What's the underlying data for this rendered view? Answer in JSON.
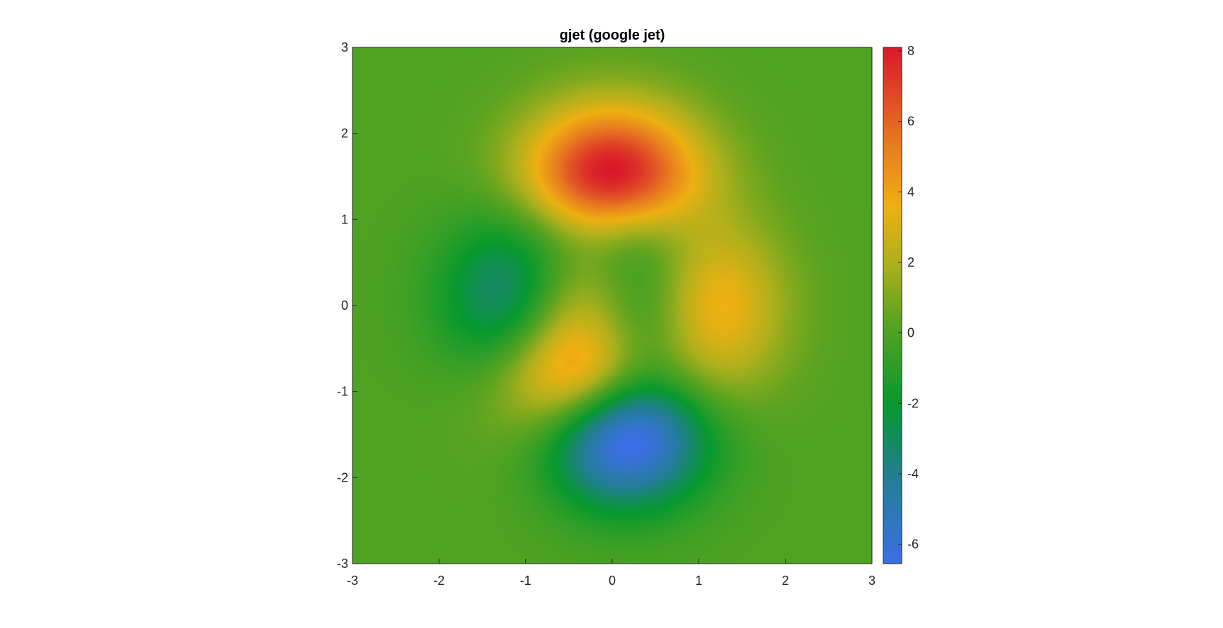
{
  "chart_data": {
    "type": "heatmap",
    "title": "gjet (google jet)",
    "xlabel": "",
    "ylabel": "",
    "xlim": [
      -3,
      3
    ],
    "ylim": [
      -3,
      3
    ],
    "x_ticks": [
      -3,
      -2,
      -1,
      0,
      1,
      2,
      3
    ],
    "y_ticks": [
      -3,
      -2,
      -1,
      0,
      1,
      2,
      3
    ],
    "x_tick_labels": [
      "-3",
      "-2",
      "-1",
      "0",
      "1",
      "2",
      "3"
    ],
    "y_tick_labels": [
      "-3",
      "-2",
      "-1",
      "0",
      "1",
      "2",
      "3"
    ],
    "colorbar": {
      "limits": [
        -6.55,
        8.1
      ],
      "ticks": [
        -6,
        -4,
        -2,
        0,
        2,
        4,
        6,
        8
      ],
      "tick_labels": [
        "-6",
        "-4",
        "-2",
        "0",
        "2",
        "4",
        "6",
        "8"
      ]
    },
    "colormap_name": "gjet",
    "colormap_stops": [
      {
        "value": -6.55,
        "color": "#3b6fe6"
      },
      {
        "value": -4.0,
        "color": "#217f8f"
      },
      {
        "value": -2.0,
        "color": "#07992e"
      },
      {
        "value": 0.3,
        "color": "#5aa320"
      },
      {
        "value": 2.0,
        "color": "#b0b01c"
      },
      {
        "value": 3.6,
        "color": "#eeb012"
      },
      {
        "value": 5.3,
        "color": "#e87c20"
      },
      {
        "value": 8.1,
        "color": "#d9192a"
      }
    ],
    "function": "peaks",
    "grid": false
  }
}
